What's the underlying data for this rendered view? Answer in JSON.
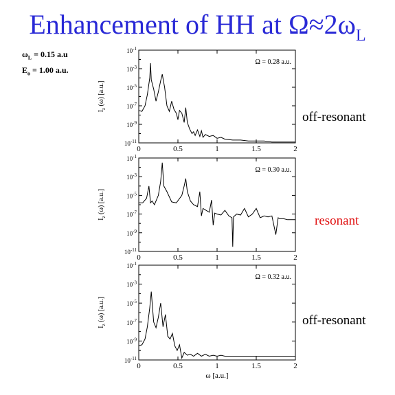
{
  "title": {
    "main": "Enhancement of HH at Ω≈2ω",
    "sub": "L"
  },
  "params": [
    {
      "sym": "ω",
      "sub": "L",
      "value": "= 0.15 a.u"
    },
    {
      "sym": "E",
      "sub": "o",
      "value": "= 1.00 a.u."
    }
  ],
  "notes": [
    "off-resonant",
    "resonant",
    "off-resonant"
  ],
  "colors": {
    "title": "#2929d6",
    "resonant": "#e01010",
    "off_resonant": "#000000"
  },
  "chart_data": [
    {
      "type": "line",
      "annotation": "Ω = 0.28 a.u.",
      "ylabel": "I_z (ω) [a.u.]",
      "xlabel": "",
      "xlim": [
        0,
        2
      ],
      "ylim_log10": [
        -11,
        -1
      ],
      "x_ticks": [
        "0",
        "0.5",
        "1",
        "1.5",
        "2"
      ],
      "y_ticks": [
        "10^-11",
        "10^-9",
        "10^-7",
        "10^-5",
        "10^-3",
        "10^-1"
      ],
      "scale_y": "log",
      "x": [
        0,
        0.04,
        0.08,
        0.11,
        0.14,
        0.15,
        0.16,
        0.19,
        0.22,
        0.25,
        0.28,
        0.3,
        0.33,
        0.36,
        0.39,
        0.42,
        0.45,
        0.48,
        0.5,
        0.52,
        0.55,
        0.58,
        0.6,
        0.62,
        0.65,
        0.68,
        0.7,
        0.72,
        0.75,
        0.78,
        0.8,
        0.82,
        0.85,
        0.9,
        0.95,
        1.0,
        1.05,
        1.1,
        1.2,
        1.3,
        1.4,
        1.5,
        1.6,
        1.7,
        1.8,
        1.9,
        2.0
      ],
      "y": [
        -7.5,
        -7.6,
        -7.0,
        -5.8,
        -4.0,
        -2.4,
        -4.2,
        -5.2,
        -6.5,
        -5.5,
        -4.3,
        -3.6,
        -5.0,
        -7.0,
        -7.6,
        -6.5,
        -7.4,
        -7.8,
        -8.5,
        -7.5,
        -7.8,
        -8.8,
        -7.2,
        -8.8,
        -9.5,
        -10.0,
        -9.8,
        -10.2,
        -9.6,
        -10.3,
        -9.7,
        -10.4,
        -10.1,
        -10.3,
        -10.2,
        -10.5,
        -10.4,
        -10.6,
        -10.7,
        -10.7,
        -10.8,
        -10.8,
        -10.8,
        -10.9,
        -10.9,
        -10.9,
        -10.9
      ]
    },
    {
      "type": "line",
      "annotation": "Ω = 0.30 a.u.",
      "ylabel": "I_z (ω) [a.u.]",
      "xlabel": "",
      "xlim": [
        0,
        2
      ],
      "ylim_log10": [
        -11,
        -1
      ],
      "x_ticks": [
        "0",
        "0.5",
        "1",
        "1.5",
        "2"
      ],
      "y_ticks": [
        "10^-11",
        "10^-9",
        "10^-7",
        "10^-5",
        "10^-3",
        "10^-1"
      ],
      "scale_y": "log",
      "x": [
        0,
        0.05,
        0.1,
        0.13,
        0.15,
        0.17,
        0.2,
        0.25,
        0.28,
        0.3,
        0.32,
        0.36,
        0.42,
        0.48,
        0.55,
        0.58,
        0.6,
        0.62,
        0.66,
        0.7,
        0.75,
        0.78,
        0.8,
        0.82,
        0.86,
        0.9,
        0.93,
        0.95,
        0.97,
        1.0,
        1.05,
        1.1,
        1.15,
        1.19,
        1.2,
        1.21,
        1.25,
        1.3,
        1.35,
        1.4,
        1.45,
        1.5,
        1.55,
        1.6,
        1.65,
        1.7,
        1.75,
        1.78,
        1.8,
        1.85,
        1.9,
        2.0
      ],
      "y": [
        -5.8,
        -5.8,
        -5.3,
        -4.0,
        -5.8,
        -5.6,
        -6.0,
        -5.0,
        -3.5,
        -1.5,
        -4.0,
        -4.6,
        -5.7,
        -5.8,
        -5.0,
        -4.0,
        -3.2,
        -4.6,
        -5.6,
        -6.0,
        -6.2,
        -4.6,
        -7.2,
        -6.4,
        -6.6,
        -6.8,
        -5.5,
        -8.2,
        -6.9,
        -7.0,
        -7.1,
        -6.6,
        -7.2,
        -7.4,
        -10.5,
        -7.3,
        -7.0,
        -7.1,
        -6.4,
        -7.3,
        -7.0,
        -6.4,
        -7.4,
        -7.2,
        -7.3,
        -7.2,
        -9.2,
        -7.4,
        -7.5,
        -7.5,
        -7.6,
        -7.6
      ]
    },
    {
      "type": "line",
      "annotation": "Ω = 0.32 a.u.",
      "ylabel": "I_z (ω) [a.u.]",
      "xlabel": "ω [a.u.]",
      "xlim": [
        0,
        2
      ],
      "ylim_log10": [
        -11,
        -1
      ],
      "x_ticks": [
        "0",
        "0.5",
        "1",
        "1.5",
        "2"
      ],
      "y_ticks": [
        "10^-11",
        "10^-9",
        "10^-7",
        "10^-5",
        "10^-3",
        "10^-1"
      ],
      "scale_y": "log",
      "x": [
        0,
        0.04,
        0.08,
        0.11,
        0.14,
        0.16,
        0.19,
        0.22,
        0.25,
        0.28,
        0.31,
        0.34,
        0.37,
        0.4,
        0.43,
        0.46,
        0.49,
        0.52,
        0.55,
        0.58,
        0.62,
        0.66,
        0.7,
        0.75,
        0.8,
        0.85,
        0.9,
        0.95,
        1.0,
        1.05,
        1.1,
        1.15,
        1.2,
        1.25,
        1.3,
        1.35,
        1.4,
        1.45,
        1.5,
        1.55,
        1.6,
        1.65,
        1.7,
        1.75,
        1.8,
        1.85,
        1.9,
        1.95,
        2.0
      ],
      "y": [
        -9.5,
        -9.4,
        -8.8,
        -7.5,
        -5.5,
        -3.8,
        -7.0,
        -7.6,
        -6.5,
        -5.0,
        -7.5,
        -6.2,
        -8.5,
        -8.8,
        -8.2,
        -9.5,
        -10.0,
        -9.4,
        -10.8,
        -10.2,
        -10.5,
        -10.4,
        -10.6,
        -10.3,
        -10.6,
        -10.4,
        -10.6,
        -10.5,
        -10.6,
        -10.5,
        -10.6,
        -10.6,
        -10.6,
        -10.6,
        -10.6,
        -10.6,
        -10.6,
        -10.6,
        -10.6,
        -10.6,
        -10.6,
        -10.6,
        -10.6,
        -10.6,
        -10.6,
        -10.6,
        -10.6,
        -10.6,
        -10.6
      ]
    }
  ]
}
